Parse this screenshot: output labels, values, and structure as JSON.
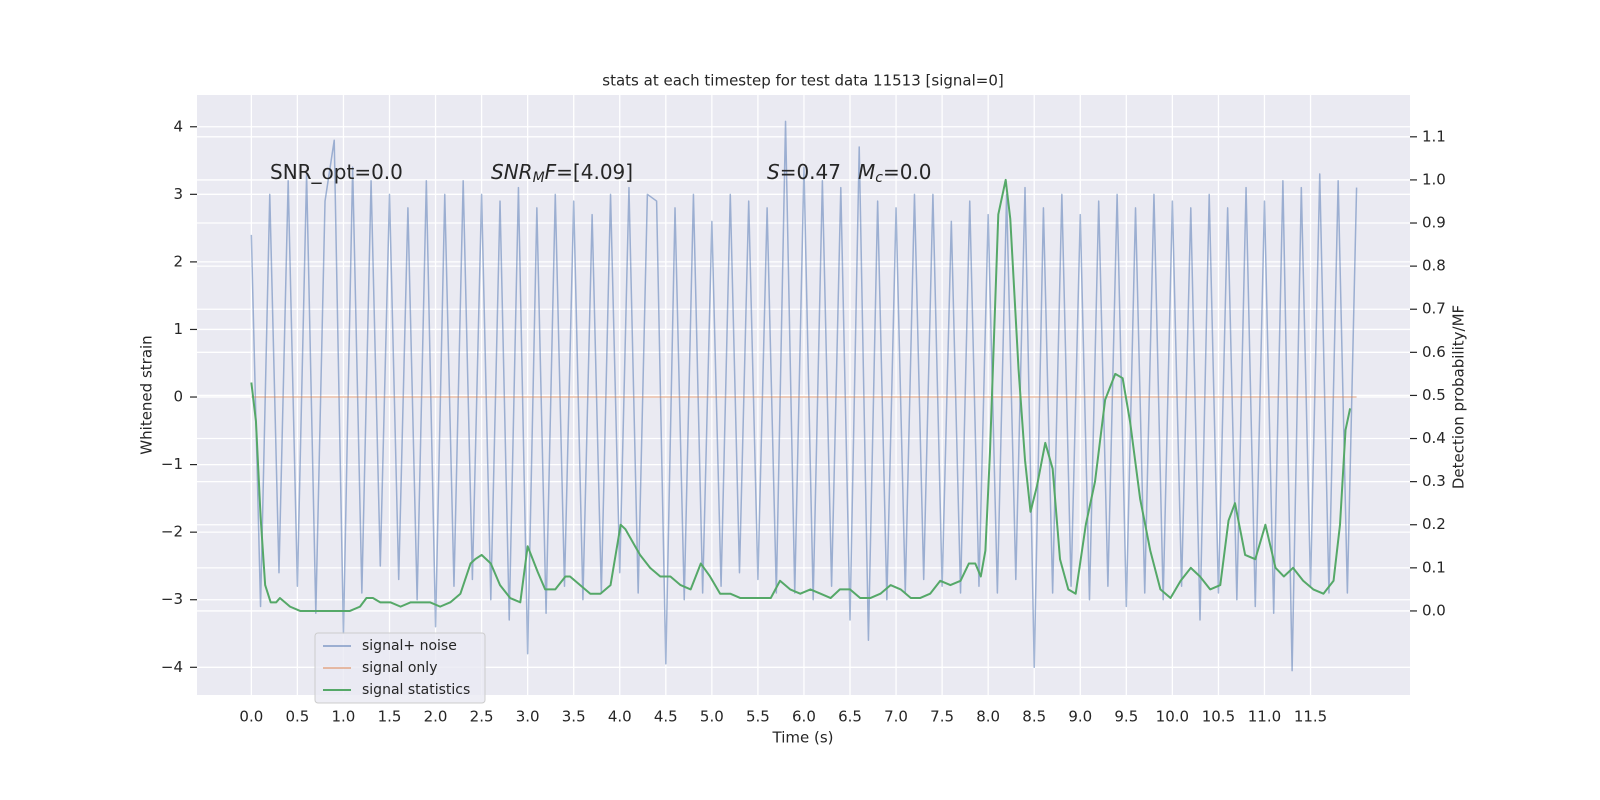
{
  "chart_data": {
    "type": "line",
    "title": "stats at each timestep for test data 11513 [signal=0]",
    "xlabel": "Time (s)",
    "ylabel": "Whitened strain",
    "y2label": "Detection probability/MF",
    "xlim": [
      -0.59,
      12.58
    ],
    "ylim": [
      -4.41,
      4.47
    ],
    "y2lim": [
      -0.195,
      1.197
    ],
    "xticks": [
      {
        "value": 0,
        "label": "0.0"
      },
      0.5,
      {
        "value": 1,
        "label": "1.0"
      },
      1.5,
      {
        "value": 2,
        "label": "2.0"
      },
      2.5,
      {
        "value": 3,
        "label": "3.0"
      },
      3.5,
      {
        "value": 4,
        "label": "4.0"
      },
      4.5,
      {
        "value": 5,
        "label": "5.0"
      },
      5.5,
      {
        "value": 6,
        "label": "6.0"
      },
      6.5,
      {
        "value": 7,
        "label": "7.0"
      },
      7.5,
      {
        "value": 8,
        "label": "8.0"
      },
      8.5,
      {
        "value": 9,
        "label": "9.0"
      },
      9.5,
      {
        "value": 10,
        "label": "10.0"
      },
      10.5,
      {
        "value": 11,
        "label": "11.0"
      },
      11.5
    ],
    "yticks": [
      {
        "value": -4,
        "label": "−4"
      },
      {
        "value": -3,
        "label": "−3"
      },
      {
        "value": -2,
        "label": "−2"
      },
      {
        "value": -1,
        "label": "−1"
      },
      0,
      1,
      2,
      3,
      4
    ],
    "y2ticks": [
      {
        "value": 0,
        "label": "0.0"
      },
      0.1,
      0.2,
      0.3,
      0.4,
      0.5,
      0.6,
      0.7,
      0.8,
      0.9,
      {
        "value": 1,
        "label": "1.0"
      },
      1.1
    ],
    "grid": true,
    "legend": "lower left",
    "annotations": [
      [
        {
          "text": "SNR_opt=0.0",
          "style": "normal"
        }
      ],
      [
        {
          "text": "SNR",
          "style": "italic"
        },
        {
          "text": "M",
          "style": "sub"
        },
        {
          "text": "F",
          "style": "italic"
        },
        {
          "text": "=[4.09]",
          "style": "normal"
        }
      ],
      [
        {
          "text": "S",
          "style": "italic"
        },
        {
          "text": "=0.47",
          "style": "normal"
        }
      ],
      [
        {
          "text": "M",
          "style": "italic"
        },
        {
          "text": "c",
          "style": "sub"
        },
        {
          "text": "=0.0",
          "style": "normal"
        }
      ]
    ],
    "series": [
      {
        "name": "signal+ noise",
        "color": "#4c72b0",
        "opacity": 0.5,
        "x": [
          0.0,
          0.1,
          0.2,
          0.3,
          0.4,
          0.5,
          0.6,
          0.7,
          0.8,
          0.9,
          1.0,
          1.1,
          1.2,
          1.3,
          1.4,
          1.5,
          1.6,
          1.7,
          1.8,
          1.9,
          2.0,
          2.1,
          2.2,
          2.3,
          2.4,
          2.5,
          2.6,
          2.7,
          2.8,
          2.9,
          3.0,
          3.1,
          3.2,
          3.3,
          3.4,
          3.5,
          3.6,
          3.7,
          3.8,
          3.9,
          4.0,
          4.1,
          4.2,
          4.3,
          4.4,
          4.5,
          4.6,
          4.7,
          4.8,
          4.9,
          5.0,
          5.1,
          5.2,
          5.3,
          5.4,
          5.5,
          5.6,
          5.7,
          5.8,
          5.9,
          6.0,
          6.1,
          6.2,
          6.3,
          6.4,
          6.5,
          6.6,
          6.7,
          6.8,
          6.9,
          7.0,
          7.1,
          7.2,
          7.3,
          7.4,
          7.5,
          7.6,
          7.7,
          7.8,
          7.9,
          8.0,
          8.1,
          8.2,
          8.3,
          8.4,
          8.5,
          8.6,
          8.7,
          8.8,
          8.9,
          9.0,
          9.1,
          9.2,
          9.3,
          9.4,
          9.5,
          9.6,
          9.7,
          9.8,
          9.9,
          10.0,
          10.1,
          10.2,
          10.3,
          10.4,
          10.5,
          10.6,
          10.7,
          10.8,
          10.9,
          11.0,
          11.1,
          11.2,
          11.3,
          11.4,
          11.5,
          11.6,
          11.7,
          11.8,
          11.9,
          12.0
        ],
        "values": [
          2.4,
          -3.1,
          3.0,
          -2.6,
          3.2,
          -2.8,
          3.3,
          -3.2,
          2.9,
          3.8,
          -3.5,
          3.4,
          -2.9,
          3.2,
          -2.5,
          3.0,
          -2.7,
          2.8,
          -3.0,
          3.2,
          -3.4,
          3.0,
          -2.8,
          3.2,
          -2.7,
          3.0,
          -3.0,
          2.9,
          -3.3,
          3.1,
          -3.8,
          2.8,
          -3.2,
          3.0,
          -2.8,
          2.9,
          -3.0,
          2.7,
          -2.9,
          3.0,
          -2.6,
          3.1,
          -2.9,
          3.0,
          2.9,
          -3.95,
          2.8,
          -3.0,
          3.0,
          -2.9,
          2.6,
          -2.8,
          3.0,
          -2.6,
          2.9,
          -2.7,
          2.8,
          -2.9,
          4.08,
          -2.9,
          3.4,
          -3.0,
          3.2,
          -2.8,
          3.1,
          -3.3,
          3.7,
          -3.6,
          2.9,
          -3.0,
          2.8,
          -2.9,
          3.0,
          -2.7,
          3.0,
          -2.8,
          2.6,
          -2.9,
          2.9,
          -2.8,
          2.7,
          -2.9,
          3.0,
          -2.7,
          3.1,
          -4.0,
          2.8,
          -2.9,
          3.0,
          -2.8,
          2.7,
          -3.0,
          2.9,
          -2.8,
          3.0,
          -3.1,
          2.8,
          -2.9,
          3.0,
          -3.0,
          2.9,
          -2.8,
          2.8,
          -3.3,
          3.0,
          -2.9,
          2.8,
          -3.0,
          3.1,
          -3.1,
          2.9,
          -3.2,
          3.2,
          -4.05,
          3.1,
          -2.8,
          3.3,
          -2.9,
          3.2,
          -2.9,
          3.1
        ]
      },
      {
        "name": "signal only",
        "color": "#dd8452",
        "opacity": 0.5,
        "x": [
          0.0,
          12.0
        ],
        "values": [
          0,
          0
        ]
      },
      {
        "name": "signal statistics",
        "color": "#55a868",
        "opacity": 1,
        "axis": "y2",
        "x": [
          0.0,
          0.05,
          0.1,
          0.15,
          0.21,
          0.27,
          0.31,
          0.42,
          0.53,
          0.64,
          0.75,
          0.86,
          0.97,
          1.07,
          1.18,
          1.25,
          1.32,
          1.4,
          1.51,
          1.62,
          1.73,
          1.83,
          1.94,
          2.05,
          2.16,
          2.27,
          2.38,
          2.43,
          2.5,
          2.6,
          2.7,
          2.81,
          2.92,
          3.0,
          3.11,
          3.19,
          3.3,
          3.41,
          3.46,
          3.57,
          3.68,
          3.79,
          3.9,
          4.01,
          4.06,
          4.22,
          4.33,
          4.44,
          4.55,
          4.66,
          4.77,
          4.88,
          4.98,
          5.09,
          5.2,
          5.31,
          5.42,
          5.53,
          5.64,
          5.74,
          5.85,
          5.96,
          6.07,
          6.18,
          6.29,
          6.39,
          6.5,
          6.61,
          6.72,
          6.83,
          6.94,
          7.05,
          7.16,
          7.26,
          7.37,
          7.48,
          7.59,
          7.7,
          7.79,
          7.86,
          7.92,
          7.97,
          8.02,
          8.11,
          8.19,
          8.24,
          8.33,
          8.4,
          8.46,
          8.53,
          8.62,
          8.7,
          8.78,
          8.87,
          8.95,
          9.06,
          9.16,
          9.27,
          9.38,
          9.46,
          9.54,
          9.65,
          9.76,
          9.87,
          9.98,
          10.09,
          10.2,
          10.3,
          10.41,
          10.52,
          10.61,
          10.68,
          10.79,
          10.9,
          11.01,
          11.12,
          11.21,
          11.31,
          11.42,
          11.53,
          11.64,
          11.75,
          11.82,
          11.88,
          11.93
        ],
        "values": [
          0.53,
          0.44,
          0.22,
          0.06,
          0.02,
          0.02,
          0.03,
          0.01,
          0.0,
          0.0,
          0.0,
          0.0,
          0.0,
          0.0,
          0.01,
          0.03,
          0.03,
          0.02,
          0.02,
          0.01,
          0.02,
          0.02,
          0.02,
          0.01,
          0.02,
          0.04,
          0.11,
          0.12,
          0.13,
          0.11,
          0.06,
          0.03,
          0.02,
          0.15,
          0.09,
          0.05,
          0.05,
          0.08,
          0.08,
          0.06,
          0.04,
          0.04,
          0.06,
          0.2,
          0.19,
          0.13,
          0.1,
          0.08,
          0.08,
          0.06,
          0.05,
          0.11,
          0.08,
          0.04,
          0.04,
          0.03,
          0.03,
          0.03,
          0.03,
          0.07,
          0.05,
          0.04,
          0.05,
          0.04,
          0.03,
          0.05,
          0.05,
          0.03,
          0.03,
          0.04,
          0.06,
          0.05,
          0.03,
          0.03,
          0.04,
          0.07,
          0.06,
          0.07,
          0.11,
          0.11,
          0.08,
          0.14,
          0.37,
          0.92,
          1.0,
          0.91,
          0.56,
          0.35,
          0.23,
          0.29,
          0.39,
          0.33,
          0.12,
          0.05,
          0.04,
          0.2,
          0.3,
          0.49,
          0.55,
          0.54,
          0.44,
          0.26,
          0.14,
          0.05,
          0.03,
          0.07,
          0.1,
          0.08,
          0.05,
          0.06,
          0.21,
          0.25,
          0.13,
          0.12,
          0.2,
          0.1,
          0.08,
          0.1,
          0.07,
          0.05,
          0.04,
          0.07,
          0.2,
          0.42,
          0.47
        ]
      }
    ]
  }
}
